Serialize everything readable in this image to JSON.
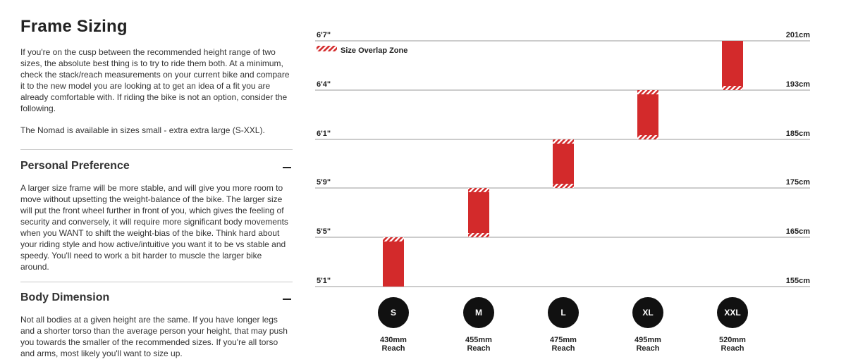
{
  "left_panel": {
    "title": "Frame Sizing",
    "intro": "If you're on the cusp between the recommended height range of two sizes, the absolute best thing is to try to ride them both. At a minimum, check the stack/reach measurements on your current bike and compare it to the new model you are looking at to get an idea of a fit you are already comfortable with. If riding the bike is not an option, consider the following.",
    "availability": "The Nomad is available in sizes small - extra extra large (S-XXL).",
    "sections": [
      {
        "heading": "Personal Preference",
        "body": "A larger size frame will be more stable, and will give you more room to move without upsetting the weight-balance of the bike. The larger size will put the front wheel further in front of you, which gives the feeling of security and conversely, it will require more significant body movements when you WANT to shift the weight-bias of the bike. Think hard about your riding style and how active/intuitive you want it to be vs stable and speedy. You'll need to work a bit harder to muscle the larger bike around."
      },
      {
        "heading": "Body Dimension",
        "body": "Not all bodies at a given height are the same. If you have longer legs and a shorter torso than the average person your height, that may push you towards the smaller of the recommended sizes. If you're all torso and arms, most likely you'll want to size up."
      }
    ]
  },
  "colors": {
    "accent": "#d32a2b",
    "line": "#9a9a9a",
    "circle": "#111111"
  },
  "chart_data": {
    "type": "bar",
    "subtype": "floating-range",
    "legend": "Size Overlap Zone",
    "y_ticks_left": [
      "5'1\"",
      "5'5\"",
      "5'9\"",
      "6'1\"",
      "6'4\"",
      "6'7\""
    ],
    "y_ticks_right": [
      "155cm",
      "165cm",
      "175cm",
      "185cm",
      "193cm",
      "201cm"
    ],
    "ylim": [
      155,
      201
    ],
    "sizes": [
      {
        "label": "S",
        "reach": "430mm",
        "reach_label": "Reach",
        "range_cm": [
          155,
          165
        ],
        "overlap_top": true,
        "overlap_bottom": false
      },
      {
        "label": "M",
        "reach": "455mm",
        "reach_label": "Reach",
        "range_cm": [
          165,
          175
        ],
        "overlap_top": true,
        "overlap_bottom": true
      },
      {
        "label": "L",
        "reach": "475mm",
        "reach_label": "Reach",
        "range_cm": [
          175,
          185
        ],
        "overlap_top": true,
        "overlap_bottom": true
      },
      {
        "label": "XL",
        "reach": "495mm",
        "reach_label": "Reach",
        "range_cm": [
          185,
          193
        ],
        "overlap_top": true,
        "overlap_bottom": true
      },
      {
        "label": "XXL",
        "reach": "520mm",
        "reach_label": "Reach",
        "range_cm": [
          193,
          201
        ],
        "overlap_top": false,
        "overlap_bottom": true
      }
    ]
  }
}
